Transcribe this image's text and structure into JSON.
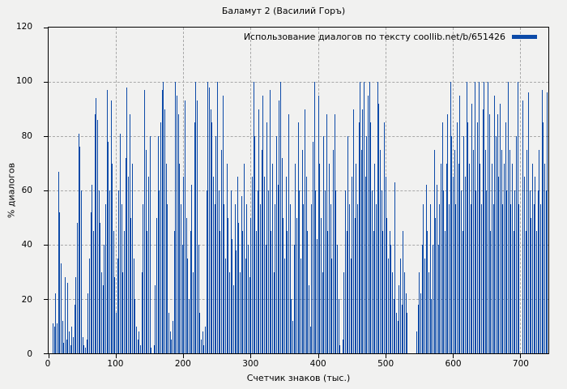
{
  "title": "Баламут 2 (Василий Горъ)",
  "legend": {
    "label": "Использование диалогов по тексту coollib.net/b/651426"
  },
  "axes": {
    "x": {
      "label": "Счетчик знаков (тыс.)",
      "ticks": [
        0,
        100,
        200,
        300,
        400,
        500,
        600,
        700
      ],
      "min": 0,
      "max": 742,
      "grid": true
    },
    "y": {
      "label": "% диалогов",
      "ticks": [
        0,
        20,
        40,
        60,
        80,
        100,
        120
      ],
      "min": 0,
      "max": 120,
      "grid": true
    }
  },
  "colors": {
    "bar": "#0c4aa8",
    "background": "#f1f1f0",
    "grid": "#a9a9a9",
    "text": "#000000"
  },
  "chart_data": {
    "type": "bar",
    "title": "Баламут 2 (Василий Горъ)",
    "series_label": "Использование диалогов по тексту coollib.net/b/651426",
    "xlabel": "Счетчик знаков (тыс.)",
    "ylabel": "% диалогов",
    "xlim": [
      0,
      742
    ],
    "ylim": [
      0,
      120
    ],
    "legend_position": "top-right-inside",
    "grid": "dashed",
    "x_start": 0,
    "x_step": 2,
    "values": [
      0,
      0,
      0,
      11,
      10,
      22,
      11,
      67,
      52,
      33,
      12,
      4,
      28,
      5,
      26,
      8,
      3,
      10,
      6,
      18,
      28,
      48,
      81,
      76,
      60,
      6,
      3,
      2,
      5,
      22,
      35,
      52,
      62,
      45,
      88,
      94,
      86,
      60,
      48,
      30,
      25,
      40,
      55,
      97,
      78,
      60,
      93,
      70,
      45,
      28,
      15,
      35,
      60,
      81,
      55,
      30,
      45,
      72,
      98,
      65,
      88,
      50,
      70,
      35,
      20,
      10,
      5,
      8,
      3,
      30,
      55,
      97,
      75,
      45,
      65,
      80,
      2,
      0,
      3,
      25,
      50,
      80,
      60,
      85,
      97,
      100,
      90,
      70,
      55,
      15,
      8,
      5,
      12,
      45,
      100,
      95,
      88,
      70,
      55,
      40,
      65,
      93,
      50,
      35,
      20,
      45,
      62,
      30,
      85,
      100,
      93,
      40,
      15,
      5,
      8,
      3,
      10,
      60,
      100,
      98,
      90,
      85,
      65,
      55,
      80,
      100,
      60,
      45,
      75,
      95,
      55,
      35,
      70,
      50,
      30,
      60,
      42,
      25,
      55,
      38,
      65,
      48,
      30,
      58,
      45,
      70,
      35,
      55,
      40,
      28,
      50,
      65,
      100,
      80,
      45,
      60,
      90,
      55,
      75,
      95,
      65,
      40,
      85,
      60,
      97,
      45,
      70,
      30,
      55,
      80,
      62,
      93,
      100,
      72,
      50,
      35,
      65,
      45,
      88,
      55,
      20,
      12,
      40,
      70,
      50,
      85,
      60,
      35,
      75,
      55,
      90,
      65,
      45,
      25,
      10,
      55,
      78,
      100,
      60,
      42,
      95,
      70,
      50,
      30,
      80,
      60,
      88,
      45,
      70,
      55,
      35,
      75,
      88,
      60,
      40,
      20,
      3,
      0,
      5,
      30,
      60,
      45,
      80,
      55,
      35,
      65,
      90,
      50,
      70,
      55,
      85,
      100,
      75,
      90,
      100,
      65,
      80,
      95,
      100,
      85,
      60,
      45,
      70,
      55,
      100,
      92,
      75,
      60,
      45,
      85,
      65,
      50,
      35,
      45,
      40,
      30,
      20,
      63,
      15,
      12,
      25,
      35,
      18,
      45,
      30,
      22,
      15,
      0,
      0,
      0,
      0,
      0,
      0,
      8,
      18,
      30,
      22,
      40,
      55,
      35,
      62,
      45,
      30,
      55,
      20,
      40,
      75,
      50,
      62,
      40,
      55,
      70,
      85,
      60,
      45,
      70,
      88,
      55,
      100,
      80,
      65,
      75,
      55,
      85,
      70,
      95,
      60,
      45,
      80,
      65,
      100,
      85,
      70,
      55,
      92,
      75,
      100,
      60,
      85,
      100,
      70,
      55,
      90,
      100,
      75,
      60,
      100,
      88,
      45,
      70,
      55,
      95,
      80,
      88,
      65,
      92,
      75,
      55,
      70,
      85,
      60,
      100,
      75,
      55,
      70,
      45,
      60,
      80,
      100,
      55,
      0,
      0,
      93,
      65,
      45,
      75,
      96,
      60,
      50,
      70,
      55,
      65,
      45,
      60,
      75,
      55,
      97,
      85,
      70,
      60,
      96,
      55
    ]
  }
}
